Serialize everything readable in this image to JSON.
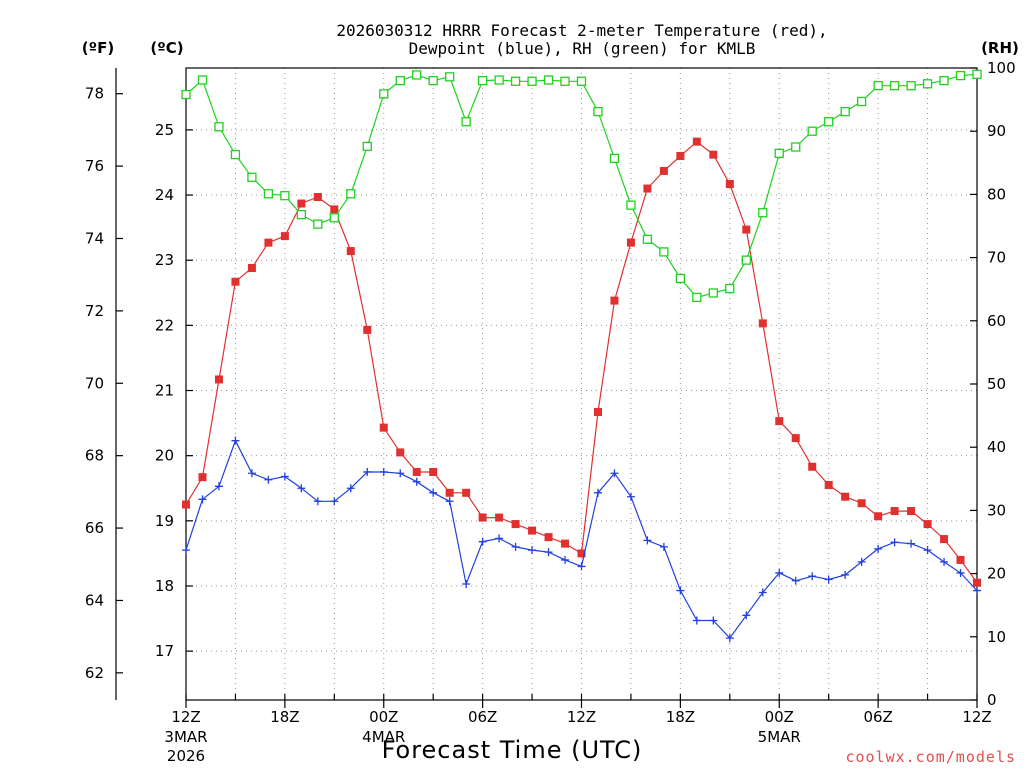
{
  "chart_data": {
    "type": "line",
    "title_line1": "2026030312 HRRR Forecast 2-meter Temperature (red),",
    "title_line2": "Dewpoint (blue), RH (green) for KMLB",
    "unit_f": "(ºF)",
    "unit_c": "(ºC)",
    "unit_rh": "(RH)",
    "xlabel": "Forecast Time (UTC)",
    "credit": "coolwx.com/models",
    "hours": 48,
    "x_ticks": [
      {
        "h": 0,
        "label": "12Z",
        "sub1": "3MAR",
        "sub2": "2026"
      },
      {
        "h": 6,
        "label": "18Z",
        "sub1": "",
        "sub2": ""
      },
      {
        "h": 12,
        "label": "00Z",
        "sub1": "4MAR",
        "sub2": ""
      },
      {
        "h": 18,
        "label": "06Z",
        "sub1": "",
        "sub2": ""
      },
      {
        "h": 24,
        "label": "12Z",
        "sub1": "",
        "sub2": ""
      },
      {
        "h": 30,
        "label": "18Z",
        "sub1": "",
        "sub2": ""
      },
      {
        "h": 36,
        "label": "00Z",
        "sub1": "5MAR",
        "sub2": ""
      },
      {
        "h": 42,
        "label": "06Z",
        "sub1": "",
        "sub2": ""
      },
      {
        "h": 48,
        "label": "12Z",
        "sub1": "",
        "sub2": ""
      }
    ],
    "c_range": [
      16.25,
      25.95
    ],
    "f_ticks": [
      62,
      64,
      66,
      68,
      70,
      72,
      74,
      76,
      78
    ],
    "c_ticks": [
      17,
      18,
      19,
      20,
      21,
      22,
      23,
      24,
      25
    ],
    "rh_range": [
      0,
      100
    ],
    "rh_ticks": [
      0,
      10,
      20,
      30,
      40,
      50,
      60,
      70,
      80,
      90,
      100
    ],
    "series": [
      {
        "name": "Temperature",
        "color": "#e03030",
        "marker": "filled-square",
        "unit": "C",
        "values": [
          19.25,
          19.67,
          21.17,
          22.67,
          22.88,
          23.27,
          23.37,
          23.87,
          23.97,
          23.78,
          23.14,
          21.93,
          20.43,
          20.05,
          19.75,
          19.75,
          19.43,
          19.43,
          19.05,
          19.05,
          18.95,
          18.85,
          18.75,
          18.65,
          18.5,
          20.67,
          22.38,
          23.27,
          24.1,
          24.37,
          24.6,
          24.82,
          24.62,
          24.17,
          23.47,
          22.03,
          20.53,
          20.27,
          19.83,
          19.55,
          19.37,
          19.27,
          19.07,
          19.15,
          19.15,
          18.95,
          18.72,
          18.4,
          18.05
        ]
      },
      {
        "name": "Dewpoint",
        "color": "#2040e0",
        "marker": "plus",
        "unit": "C",
        "values": [
          18.55,
          19.33,
          19.53,
          20.23,
          19.73,
          19.63,
          19.68,
          19.5,
          19.3,
          19.3,
          19.5,
          19.75,
          19.75,
          19.73,
          19.6,
          19.43,
          19.3,
          18.03,
          18.68,
          18.73,
          18.6,
          18.55,
          18.52,
          18.4,
          18.3,
          19.43,
          19.73,
          19.37,
          18.7,
          18.6,
          17.93,
          17.47,
          17.47,
          17.2,
          17.55,
          17.9,
          18.2,
          18.08,
          18.15,
          18.1,
          18.17,
          18.37,
          18.57,
          18.67,
          18.65,
          18.55,
          18.37,
          18.2,
          17.93
        ]
      },
      {
        "name": "RH",
        "color": "#20d020",
        "marker": "open-square",
        "unit": "%",
        "values": [
          95.8,
          98.1,
          90.7,
          86.3,
          82.7,
          80.1,
          79.8,
          76.8,
          75.3,
          76.3,
          80.1,
          87.6,
          95.9,
          98.0,
          98.9,
          98.0,
          98.6,
          91.5,
          98.0,
          98.1,
          97.9,
          97.9,
          98.1,
          97.9,
          97.9,
          93.1,
          85.7,
          78.3,
          72.9,
          70.9,
          66.7,
          63.7,
          64.4,
          65.1,
          69.6,
          77.1,
          86.5,
          87.5,
          90.0,
          91.5,
          93.1,
          94.7,
          97.2,
          97.2,
          97.2,
          97.5,
          98.0,
          98.8,
          99.0
        ]
      }
    ]
  }
}
